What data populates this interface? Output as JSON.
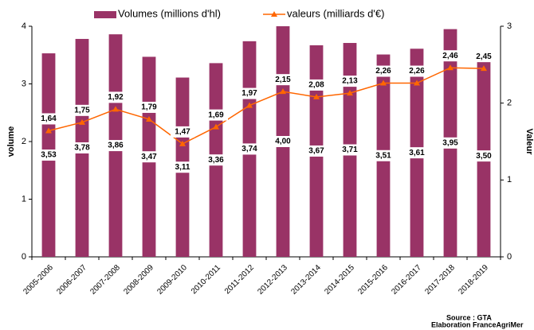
{
  "chart_data": {
    "type": "bar_line",
    "categories": [
      "2005-2006",
      "2006-2007",
      "2007-2008",
      "2008-2009",
      "2009-2010",
      "2010-2011",
      "2011-2012",
      "2012-2013",
      "2013-2014",
      "2014-2015",
      "2015-2016",
      "2016-2017",
      "2017-2018",
      "2018-2019"
    ],
    "series": [
      {
        "name": "Volumes (millions d'hl)",
        "type": "bar",
        "color": "#993366",
        "axis": "y",
        "values": [
          3.53,
          3.78,
          3.86,
          3.47,
          3.11,
          3.36,
          3.74,
          4.0,
          3.67,
          3.71,
          3.51,
          3.61,
          3.95,
          3.5
        ],
        "value_labels": [
          "3,53",
          "3,78",
          "3,86",
          "3,47",
          "3,11",
          "3,36",
          "3,74",
          "4,00",
          "3,67",
          "3,71",
          "3,51",
          "3,61",
          "3,95",
          "3,50"
        ]
      },
      {
        "name": "valeurs (milliards d'€)",
        "type": "line",
        "color": "#ff6600",
        "axis": "y2",
        "values": [
          1.64,
          1.75,
          1.92,
          1.79,
          1.47,
          1.69,
          1.97,
          2.15,
          2.08,
          2.13,
          2.26,
          2.26,
          2.46,
          2.45
        ],
        "value_labels": [
          "1,64",
          "1,75",
          "1,92",
          "1,79",
          "1,47",
          "1,69",
          "1,97",
          "2,15",
          "2,08",
          "2,13",
          "2,26",
          "2,26",
          "2,46",
          "2,45"
        ]
      }
    ],
    "ylabel": "volume",
    "y2label": "Valeur",
    "ylim": [
      0,
      4
    ],
    "yticks": [
      0,
      1,
      2,
      3,
      4
    ],
    "y2lim": [
      0,
      3
    ],
    "y2ticks": [
      0,
      1,
      2,
      3
    ],
    "annotations": [
      "Source : GTA",
      "Elaboration FranceAgriMer"
    ]
  }
}
